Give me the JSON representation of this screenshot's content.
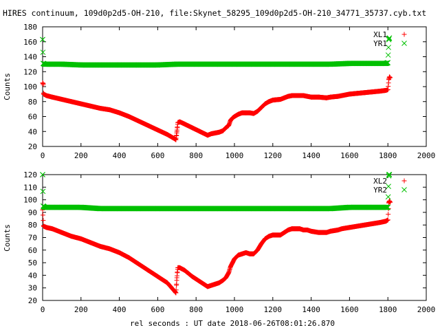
{
  "figure": {
    "title": "HIRES continuum, 109d0p2d5-OH-210, file:Skynet_58295_109d0p2d5-OH-210_34771_35737.cyb.txt",
    "xlabel": "rel seconds : UT date 2018-06-26T08:01:26.870"
  },
  "chart_data": [
    {
      "type": "scatter",
      "ylabel": "Counts",
      "xlim": [
        0,
        2000
      ],
      "ylim": [
        20,
        180
      ],
      "xticks": [
        "0",
        "200",
        "400",
        "600",
        "800",
        "1000",
        "1200",
        "1400",
        "1600",
        "1800",
        "2000"
      ],
      "yticks": [
        "20",
        "40",
        "60",
        "80",
        "100",
        "120",
        "140",
        "160",
        "180"
      ],
      "legend_position": "top-right",
      "series": [
        {
          "name": "XL1",
          "color": "#ff0000",
          "marker": "plus",
          "points": [
            [
              0,
              105
            ],
            [
              3,
              104
            ],
            [
              5,
              90
            ],
            [
              20,
              88
            ],
            [
              50,
              86
            ],
            [
              100,
              83
            ],
            [
              150,
              80
            ],
            [
              200,
              77
            ],
            [
              250,
              74
            ],
            [
              300,
              71
            ],
            [
              350,
              69
            ],
            [
              400,
              65
            ],
            [
              450,
              60
            ],
            [
              500,
              54
            ],
            [
              550,
              48
            ],
            [
              600,
              42
            ],
            [
              650,
              36
            ],
            [
              690,
              30
            ],
            [
              695,
              29
            ],
            [
              698,
              35
            ],
            [
              700,
              40
            ],
            [
              702,
              45
            ],
            [
              705,
              52
            ],
            [
              715,
              53
            ],
            [
              740,
              50
            ],
            [
              780,
              45
            ],
            [
              820,
              40
            ],
            [
              860,
              35
            ],
            [
              880,
              37
            ],
            [
              900,
              38
            ],
            [
              920,
              39
            ],
            [
              940,
              41
            ],
            [
              955,
              45
            ],
            [
              970,
              48
            ],
            [
              980,
              55
            ],
            [
              990,
              58
            ],
            [
              1000,
              60
            ],
            [
              1020,
              63
            ],
            [
              1040,
              65
            ],
            [
              1060,
              65
            ],
            [
              1080,
              65
            ],
            [
              1100,
              64
            ],
            [
              1120,
              67
            ],
            [
              1140,
              72
            ],
            [
              1160,
              77
            ],
            [
              1180,
              80
            ],
            [
              1200,
              82
            ],
            [
              1240,
              83
            ],
            [
              1260,
              85
            ],
            [
              1280,
              87
            ],
            [
              1300,
              88
            ],
            [
              1340,
              88
            ],
            [
              1360,
              88
            ],
            [
              1380,
              87
            ],
            [
              1400,
              86
            ],
            [
              1440,
              86
            ],
            [
              1480,
              85
            ],
            [
              1500,
              86
            ],
            [
              1540,
              87
            ],
            [
              1560,
              88
            ],
            [
              1600,
              90
            ],
            [
              1640,
              91
            ],
            [
              1680,
              92
            ],
            [
              1720,
              93
            ],
            [
              1760,
              94
            ],
            [
              1790,
              95
            ],
            [
              1800,
              96
            ],
            [
              1805,
              110
            ],
            [
              1808,
              113
            ],
            [
              1812,
              112
            ]
          ]
        },
        {
          "name": "YR1",
          "color": "#00c000",
          "marker": "cross",
          "points": [
            [
              0,
              163
            ],
            [
              3,
              131
            ],
            [
              10,
              130
            ],
            [
              50,
              130
            ],
            [
              100,
              130
            ],
            [
              200,
              129
            ],
            [
              300,
              129
            ],
            [
              400,
              129
            ],
            [
              500,
              129
            ],
            [
              600,
              129
            ],
            [
              700,
              130
            ],
            [
              800,
              130
            ],
            [
              900,
              130
            ],
            [
              1000,
              130
            ],
            [
              1100,
              130
            ],
            [
              1200,
              130
            ],
            [
              1300,
              130
            ],
            [
              1400,
              130
            ],
            [
              1500,
              130
            ],
            [
              1600,
              131
            ],
            [
              1700,
              131
            ],
            [
              1790,
              131
            ],
            [
              1800,
              132
            ],
            [
              1805,
              164
            ],
            [
              1808,
              165
            ]
          ]
        }
      ]
    },
    {
      "type": "scatter",
      "ylabel": "Counts",
      "xlim": [
        0,
        2000
      ],
      "ylim": [
        20,
        120
      ],
      "xticks": [
        "0",
        "200",
        "400",
        "600",
        "800",
        "1000",
        "1200",
        "1400",
        "1600",
        "1800",
        "2000"
      ],
      "yticks": [
        "20",
        "30",
        "40",
        "50",
        "60",
        "70",
        "80",
        "90",
        "100",
        "110",
        "120"
      ],
      "legend_position": "top-right",
      "series": [
        {
          "name": "XL2",
          "color": "#ff0000",
          "marker": "plus",
          "points": [
            [
              0,
              92
            ],
            [
              5,
              79
            ],
            [
              20,
              78
            ],
            [
              50,
              77
            ],
            [
              100,
              74
            ],
            [
              150,
              71
            ],
            [
              200,
              69
            ],
            [
              250,
              66
            ],
            [
              300,
              63
            ],
            [
              350,
              61
            ],
            [
              400,
              58
            ],
            [
              450,
              54
            ],
            [
              500,
              49
            ],
            [
              550,
              44
            ],
            [
              600,
              39
            ],
            [
              650,
              34
            ],
            [
              690,
              27
            ],
            [
              695,
              26
            ],
            [
              698,
              33
            ],
            [
              700,
              38
            ],
            [
              702,
              42
            ],
            [
              705,
              46
            ],
            [
              715,
              46
            ],
            [
              740,
              44
            ],
            [
              780,
              39
            ],
            [
              820,
              35
            ],
            [
              860,
              31
            ],
            [
              880,
              32
            ],
            [
              900,
              33
            ],
            [
              920,
              34
            ],
            [
              940,
              36
            ],
            [
              955,
              38
            ],
            [
              970,
              42
            ],
            [
              980,
              47
            ],
            [
              990,
              50
            ],
            [
              1000,
              53
            ],
            [
              1020,
              56
            ],
            [
              1040,
              57
            ],
            [
              1060,
              58
            ],
            [
              1080,
              57
            ],
            [
              1100,
              57
            ],
            [
              1120,
              60
            ],
            [
              1140,
              65
            ],
            [
              1160,
              69
            ],
            [
              1180,
              71
            ],
            [
              1200,
              72
            ],
            [
              1240,
              72
            ],
            [
              1260,
              74
            ],
            [
              1280,
              76
            ],
            [
              1300,
              77
            ],
            [
              1340,
              77
            ],
            [
              1360,
              76
            ],
            [
              1380,
              76
            ],
            [
              1400,
              75
            ],
            [
              1440,
              74
            ],
            [
              1480,
              74
            ],
            [
              1500,
              75
            ],
            [
              1540,
              76
            ],
            [
              1560,
              77
            ],
            [
              1600,
              78
            ],
            [
              1640,
              79
            ],
            [
              1680,
              80
            ],
            [
              1720,
              81
            ],
            [
              1760,
              82
            ],
            [
              1790,
              83
            ],
            [
              1800,
              84
            ],
            [
              1805,
              98
            ],
            [
              1808,
              99
            ],
            [
              1812,
              98
            ]
          ]
        },
        {
          "name": "YR2",
          "color": "#00c000",
          "marker": "cross",
          "points": [
            [
              0,
              120
            ],
            [
              3,
              95
            ],
            [
              10,
              94
            ],
            [
              50,
              94
            ],
            [
              100,
              94
            ],
            [
              200,
              94
            ],
            [
              300,
              93
            ],
            [
              400,
              93
            ],
            [
              500,
              93
            ],
            [
              600,
              93
            ],
            [
              700,
              93
            ],
            [
              800,
              93
            ],
            [
              900,
              93
            ],
            [
              1000,
              93
            ],
            [
              1100,
              93
            ],
            [
              1200,
              93
            ],
            [
              1300,
              93
            ],
            [
              1400,
              93
            ],
            [
              1500,
              93
            ],
            [
              1600,
              94
            ],
            [
              1700,
              94
            ],
            [
              1790,
              94
            ],
            [
              1800,
              94
            ],
            [
              1805,
              120
            ],
            [
              1808,
              120
            ]
          ]
        }
      ]
    }
  ]
}
